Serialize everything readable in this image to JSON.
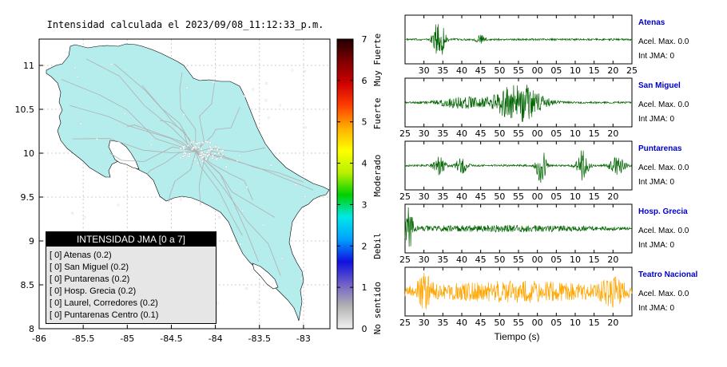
{
  "title": "Intensidad calculada el 2023/09/08_11:12:33_p.m.",
  "map": {
    "x_ticks": [
      "-86",
      "-85.5",
      "-85",
      "-84.5",
      "-84",
      "-83.5",
      "-83"
    ],
    "y_ticks": [
      "11",
      "10.5",
      "10",
      "9.5",
      "9",
      "8.5",
      "8"
    ],
    "xlim": [
      -86,
      -82.7
    ],
    "ylim": [
      8,
      11.3
    ],
    "land_color": "#b5ecec",
    "road_color": "#b0b0b0"
  },
  "colorbar": {
    "ticks": [
      "0",
      "1",
      "2",
      "3",
      "4",
      "5",
      "6",
      "7"
    ],
    "range": [
      0,
      7
    ],
    "labels": [
      {
        "text": "Muy Fuerte",
        "value": 6.5
      },
      {
        "text": "Fuerte",
        "value": 5.2
      },
      {
        "text": "Moderado",
        "value": 3.7
      },
      {
        "text": "Debil",
        "value": 2.0
      },
      {
        "text": "No sentido",
        "value": 0.5
      }
    ],
    "stops": [
      "#f2f2f2",
      "#b3b3b3",
      "#7060c8",
      "#1010e0",
      "#00a0ff",
      "#00e8e8",
      "#00d000",
      "#b8f000",
      "#ffff00",
      "#ffb000",
      "#ff4000",
      "#d00000",
      "#800000",
      "#200000"
    ]
  },
  "legend": {
    "header": "INTENSIDAD JMA [0 a 7]",
    "items": [
      "[ 0]  Atenas (0.2)",
      "[ 0]  San Miguel (0.2)",
      "[ 0]  Puntarenas (0.2)",
      "[ 0]  Hosp. Grecia (0.2)",
      "[ 0]  Laurel, Corredores (0.2)",
      "[ 0]  Puntarenas Centro (0.1)"
    ]
  },
  "chart_data": {
    "type": "line",
    "xlabel": "Tiempo (s)",
    "stations": [
      {
        "name": "Atenas",
        "acc_label": "Acel. Max. 0.0",
        "int_label": "Int JMA: 0",
        "color": "#006400",
        "ticks": [
          "30",
          "35",
          "40",
          "45",
          "50",
          "55",
          "00",
          "05",
          "10",
          "15",
          "20",
          "25"
        ],
        "first_tick": 30,
        "bursts": [
          {
            "center": 34,
            "width": 1.5,
            "amp": 0.9
          },
          {
            "center": 45,
            "width": 1.2,
            "amp": 0.2
          }
        ]
      },
      {
        "name": "San Miguel",
        "acc_label": "Acel. Max. 0.0",
        "int_label": "Int JMA: 0",
        "color": "#006400",
        "ticks": [
          "25",
          "30",
          "35",
          "40",
          "45",
          "50",
          "55",
          "00",
          "05",
          "10",
          "15",
          "20"
        ],
        "first_tick": 25,
        "bursts": [
          {
            "center": 55,
            "width": 6,
            "amp": 0.9
          },
          {
            "center": 40,
            "width": 6,
            "amp": 0.25
          }
        ]
      },
      {
        "name": "Puntarenas",
        "acc_label": "Acel. Max. 0.0",
        "int_label": "Int JMA: 0",
        "color": "#006400",
        "ticks": [
          "25",
          "30",
          "35",
          "40",
          "45",
          "50",
          "55",
          "00",
          "05",
          "10",
          "15",
          "20"
        ],
        "first_tick": 25,
        "bursts": [
          {
            "center": 34,
            "width": 1.5,
            "amp": 0.4
          },
          {
            "center": 40,
            "width": 1.5,
            "amp": 0.35
          },
          {
            "center": 61,
            "width": 1.2,
            "amp": 0.85
          },
          {
            "center": 72,
            "width": 1.5,
            "amp": 0.7
          },
          {
            "center": 81,
            "width": 2,
            "amp": 0.4
          }
        ]
      },
      {
        "name": "Hosp. Grecia",
        "acc_label": "Acel. Max. 0.0",
        "int_label": "Int JMA: 0",
        "color": "#006400",
        "ticks": [
          "25",
          "30",
          "35",
          "40",
          "45",
          "50",
          "55",
          "00",
          "05",
          "10",
          "15",
          "20"
        ],
        "first_tick": 25,
        "bursts": [
          {
            "center": 26,
            "width": 1,
            "amp": 0.9
          },
          {
            "center": 50,
            "width": 30,
            "amp": 0.12
          }
        ]
      },
      {
        "name": "Teatro Nacional",
        "acc_label": "Acel. Max. 0.0",
        "int_label": "Int JMA: 0",
        "color": "#ffa500",
        "ticks": [
          "25",
          "30",
          "35",
          "40",
          "45",
          "50",
          "55",
          "00",
          "05",
          "10",
          "15",
          "20"
        ],
        "first_tick": 25,
        "bursts": [
          {
            "center": 30,
            "width": 2,
            "amp": 0.6
          },
          {
            "center": 55,
            "width": 30,
            "amp": 0.45
          },
          {
            "center": 80,
            "width": 3,
            "amp": 0.45
          }
        ]
      }
    ]
  }
}
